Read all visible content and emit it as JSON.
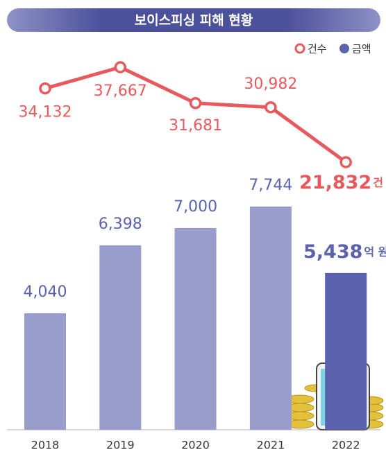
{
  "chart_data": {
    "type": "combo",
    "title": "보이스피싱 피해 현황",
    "categories": [
      "2018",
      "2019",
      "2020",
      "2021",
      "2022"
    ],
    "series": [
      {
        "name": "금액",
        "type": "bar",
        "color": "#999dcc",
        "highlight_color": "#5a62ad",
        "label_color": "#5a62ad",
        "unit": "억 원",
        "values": [
          4040,
          6398,
          7000,
          7744,
          5438
        ],
        "value_labels": [
          "4,040",
          "6,398",
          "7,000",
          "7,744",
          "5,438"
        ]
      },
      {
        "name": "건수",
        "type": "line",
        "color": "#e65a5e",
        "label_color": "#e65a5e",
        "unit": "건",
        "values": [
          34132,
          37667,
          31681,
          30982,
          21832
        ],
        "value_labels": [
          "34,132",
          "37,667",
          "31,681",
          "30,982",
          "21,832"
        ]
      }
    ]
  }
}
